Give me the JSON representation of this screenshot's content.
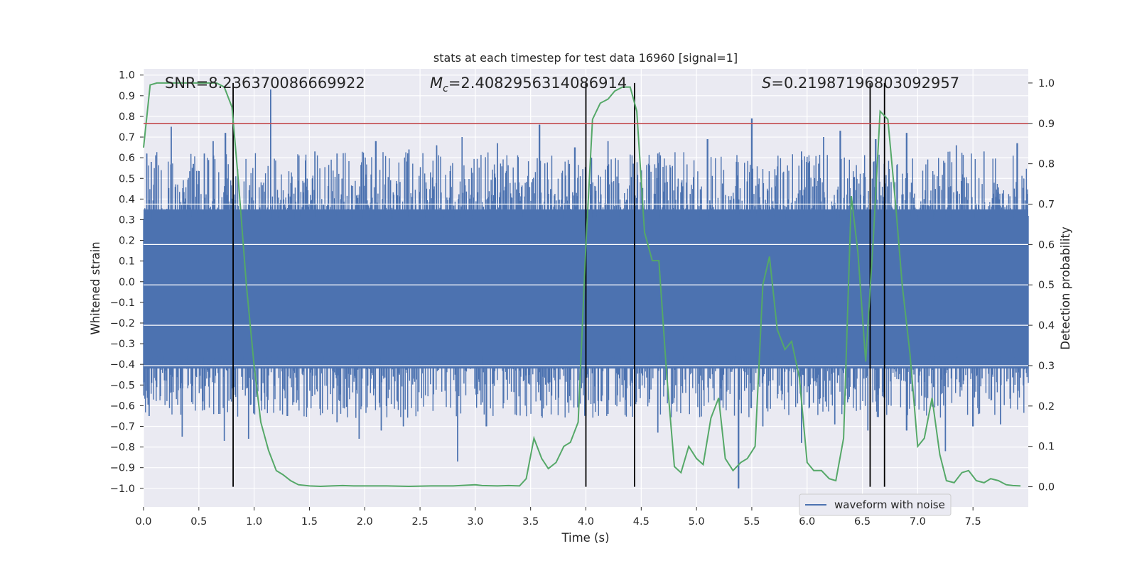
{
  "chart_data": {
    "type": "line",
    "title": "stats at each timestep for test data 16960 [signal=1]",
    "xlabel": "Time (s)",
    "ylabel_left": "Whitened strain",
    "ylabel_right": "Detection probability",
    "xlim": [
      0.0,
      8.0
    ],
    "ylim_left": [
      -1.09,
      1.03
    ],
    "ylim_right": [
      -0.05,
      1.035
    ],
    "xticks": [
      0.0,
      0.5,
      1.0,
      1.5,
      2.0,
      2.5,
      3.0,
      3.5,
      4.0,
      4.5,
      5.0,
      5.5,
      6.0,
      6.5,
      7.0,
      7.5
    ],
    "xtick_labels": [
      "0.0",
      "0.5",
      "1.0",
      "1.5",
      "2.0",
      "2.5",
      "3.0",
      "3.5",
      "4.0",
      "4.5",
      "5.0",
      "5.5",
      "6.0",
      "6.5",
      "7.0",
      "7.5"
    ],
    "yticks_left": [
      1.0,
      0.9,
      0.8,
      0.7,
      0.6,
      0.5,
      0.4,
      0.3,
      0.2,
      0.1,
      0.0,
      -0.1,
      -0.2,
      -0.3,
      -0.4,
      -0.5,
      -0.6,
      -0.7,
      -0.8,
      -0.9,
      -1.0
    ],
    "ytick_labels_left": [
      "1.0",
      "0.9",
      "0.8",
      "0.7",
      "0.6",
      "0.5",
      "0.4",
      "0.3",
      "0.2",
      "0.1",
      "0.0",
      "−0.1",
      "−0.2",
      "−0.3",
      "−0.4",
      "−0.5",
      "−0.6",
      "−0.7",
      "−0.8",
      "−0.9",
      "−1.0"
    ],
    "yticks_right": [
      1.0,
      0.9,
      0.8,
      0.7,
      0.6,
      0.5,
      0.4,
      0.3,
      0.2,
      0.1,
      0.0
    ],
    "ytick_labels_right": [
      "1.0",
      "0.9",
      "0.8",
      "0.7",
      "0.6",
      "0.5",
      "0.4",
      "0.3",
      "0.2",
      "0.1",
      "0.0"
    ],
    "annotations": {
      "snr": "SNR=8.236370086669922",
      "mc_symbol": "M",
      "mc_subscript": "c",
      "mc_value": "=2.4082956314086914",
      "s_symbol": "S",
      "s_value": "=0.21987196803092957"
    },
    "threshold": {
      "value": 0.9,
      "axis": "right",
      "color": "#c44e52"
    },
    "vertical_lines": [
      0.81,
      4.0,
      4.44,
      6.57,
      6.7
    ],
    "waveform": {
      "name": "waveform with noise",
      "color": "#4c72b0",
      "x_range": [
        0.0,
        8.0
      ],
      "band_min": [
        -0.42,
        0.35
      ],
      "peaks_positive": [
        [
          0.03,
          0.62
        ],
        [
          0.07,
          0.58
        ],
        [
          0.25,
          0.75
        ],
        [
          0.45,
          0.57
        ],
        [
          0.55,
          0.62
        ],
        [
          0.63,
          0.68
        ],
        [
          0.74,
          0.72
        ],
        [
          1.15,
          0.93
        ],
        [
          1.55,
          0.63
        ],
        [
          1.75,
          0.62
        ],
        [
          2.1,
          0.68
        ],
        [
          2.4,
          0.64
        ],
        [
          2.65,
          0.66
        ],
        [
          2.88,
          0.7
        ],
        [
          3.2,
          0.67
        ],
        [
          3.58,
          0.76
        ],
        [
          3.9,
          0.65
        ],
        [
          4.05,
          0.6
        ],
        [
          4.2,
          0.68
        ],
        [
          4.65,
          0.62
        ],
        [
          5.1,
          0.69
        ],
        [
          5.5,
          0.79
        ],
        [
          5.95,
          0.63
        ],
        [
          6.15,
          0.7
        ],
        [
          6.3,
          0.73
        ],
        [
          6.62,
          0.69
        ],
        [
          6.9,
          0.72
        ],
        [
          7.35,
          0.66
        ],
        [
          7.6,
          0.63
        ],
        [
          7.9,
          0.67
        ]
      ],
      "peaks_negative": [
        [
          0.05,
          -0.65
        ],
        [
          0.35,
          -0.75
        ],
        [
          0.55,
          -0.62
        ],
        [
          0.73,
          -0.77
        ],
        [
          0.95,
          -0.76
        ],
        [
          1.3,
          -0.65
        ],
        [
          1.75,
          -0.68
        ],
        [
          1.95,
          -0.76
        ],
        [
          2.15,
          -0.72
        ],
        [
          2.35,
          -0.7
        ],
        [
          2.84,
          -0.87
        ],
        [
          3.1,
          -0.7
        ],
        [
          3.6,
          -0.65
        ],
        [
          4.2,
          -0.64
        ],
        [
          4.65,
          -0.73
        ],
        [
          5.38,
          -1.0
        ],
        [
          5.6,
          -0.7
        ],
        [
          5.95,
          -0.78
        ],
        [
          6.25,
          -0.69
        ],
        [
          6.55,
          -0.72
        ],
        [
          6.9,
          -0.72
        ],
        [
          7.25,
          -0.82
        ],
        [
          7.5,
          -0.7
        ],
        [
          7.75,
          -0.69
        ]
      ]
    },
    "detection_probability": {
      "name": "detection probability",
      "color": "#55a868",
      "x": [
        0.0,
        0.06,
        0.12,
        0.2,
        0.3,
        0.4,
        0.5,
        0.6,
        0.66,
        0.73,
        0.8,
        0.86,
        0.93,
        1.0,
        1.06,
        1.13,
        1.2,
        1.26,
        1.33,
        1.4,
        1.5,
        1.6,
        1.7,
        1.8,
        1.9,
        2.0,
        2.2,
        2.4,
        2.6,
        2.8,
        3.0,
        3.06,
        3.2,
        3.3,
        3.4,
        3.46,
        3.53,
        3.6,
        3.66,
        3.73,
        3.8,
        3.86,
        3.93,
        4.0,
        4.06,
        4.13,
        4.2,
        4.26,
        4.33,
        4.4,
        4.46,
        4.53,
        4.6,
        4.66,
        4.73,
        4.8,
        4.86,
        4.93,
        5.0,
        5.06,
        5.13,
        5.2,
        5.26,
        5.33,
        5.4,
        5.46,
        5.53,
        5.6,
        5.66,
        5.73,
        5.8,
        5.86,
        5.93,
        6.0,
        6.06,
        6.13,
        6.2,
        6.26,
        6.33,
        6.4,
        6.46,
        6.53,
        6.6,
        6.66,
        6.73,
        6.8,
        6.86,
        6.93,
        7.0,
        7.06,
        7.13,
        7.2,
        7.26,
        7.33,
        7.4,
        7.46,
        7.53,
        7.6,
        7.66,
        7.73,
        7.8,
        7.86,
        7.93
      ],
      "y": [
        0.84,
        0.995,
        1.0,
        1.0,
        1.0,
        1.0,
        1.0,
        1.0,
        1.0,
        0.99,
        0.94,
        0.75,
        0.5,
        0.3,
        0.16,
        0.09,
        0.04,
        0.03,
        0.015,
        0.005,
        0.002,
        0.001,
        0.002,
        0.003,
        0.002,
        0.002,
        0.002,
        0.001,
        0.002,
        0.002,
        0.005,
        0.003,
        0.002,
        0.003,
        0.002,
        0.02,
        0.12,
        0.07,
        0.045,
        0.06,
        0.1,
        0.11,
        0.16,
        0.6,
        0.91,
        0.95,
        0.96,
        0.98,
        0.99,
        0.99,
        0.93,
        0.63,
        0.56,
        0.56,
        0.28,
        0.05,
        0.035,
        0.1,
        0.07,
        0.055,
        0.17,
        0.22,
        0.07,
        0.04,
        0.06,
        0.07,
        0.1,
        0.5,
        0.57,
        0.39,
        0.34,
        0.36,
        0.27,
        0.06,
        0.04,
        0.04,
        0.02,
        0.015,
        0.12,
        0.72,
        0.58,
        0.31,
        0.62,
        0.93,
        0.91,
        0.7,
        0.5,
        0.33,
        0.1,
        0.12,
        0.22,
        0.08,
        0.015,
        0.01,
        0.035,
        0.04,
        0.015,
        0.01,
        0.02,
        0.015,
        0.005,
        0.003,
        0.002
      ]
    },
    "legend": {
      "labels": [
        "waveform with noise"
      ],
      "placement": "lower-right"
    }
  }
}
